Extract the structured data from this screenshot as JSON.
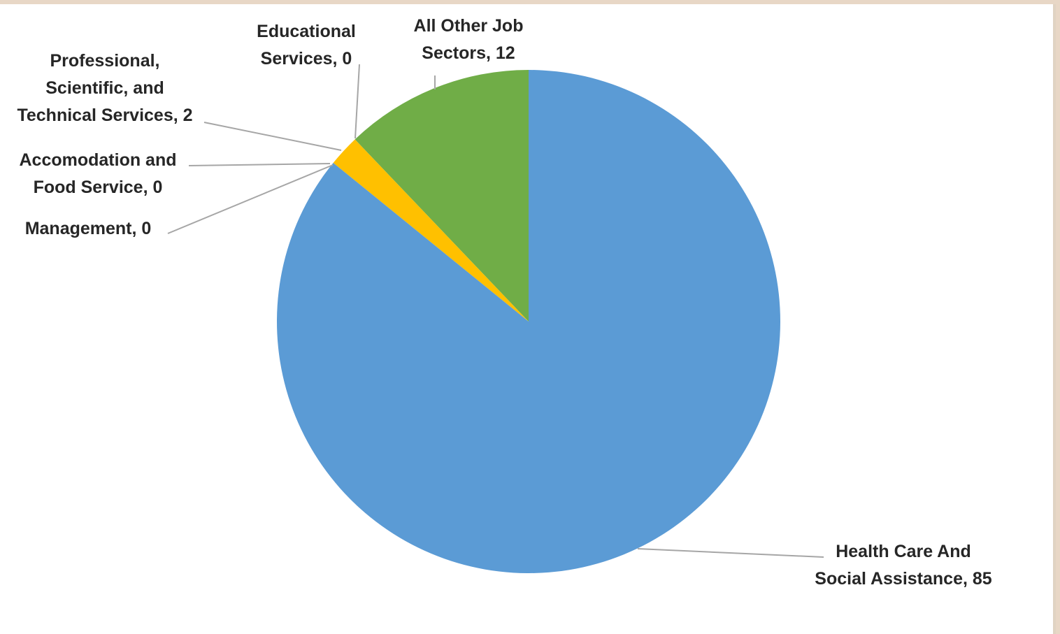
{
  "chart_data": {
    "type": "pie",
    "title": "",
    "slices": [
      {
        "label_lines": [
          "All Other Job",
          "Sectors, 12"
        ],
        "category": "All Other Job Sectors",
        "value": 12,
        "color": "#70ad47"
      },
      {
        "label_lines": [
          "Educational",
          "Services, 0"
        ],
        "category": "Educational Services",
        "value": 0,
        "color": "#7f7f7f"
      },
      {
        "label_lines": [
          "Professional,",
          "Scientific, and",
          "Technical Services, 2"
        ],
        "category": "Professional, Scientific, and Technical Services",
        "value": 2,
        "color": "#ffc000"
      },
      {
        "label_lines": [
          "Accomodation and",
          "Food Service, 0"
        ],
        "category": "Accomodation and Food Service",
        "value": 0,
        "color": "#a5a5a5"
      },
      {
        "label_lines": [
          "Management, 0"
        ],
        "category": "Management",
        "value": 0,
        "color": "#4472c4"
      },
      {
        "label_lines": [
          "Health Care And",
          "Social Assistance, 85"
        ],
        "category": "Health Care And Social Assistance",
        "value": 85,
        "color": "#5b9bd5"
      }
    ]
  }
}
